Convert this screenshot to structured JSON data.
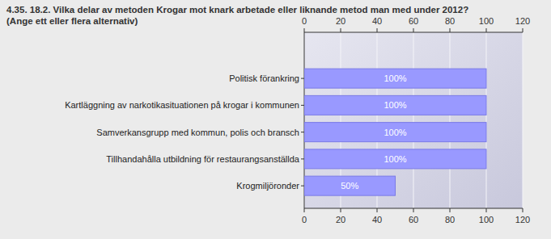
{
  "chart_data": {
    "type": "bar",
    "orientation": "horizontal",
    "title": "4.35. 18.2. Vilka delar av metoden Krogar mot knark arbetade eller liknande metod man med under 2012?\n(Ange ett eller flera alternativ)",
    "categories": [
      "Politisk förankring",
      "Kartläggning av narkotikasituationen på krogar i kommunen",
      "Samverkansgrupp med kommun, polis och bransch",
      "Tillhandahålla utbildning för restaurangsanställda",
      "Krogmiljöronder"
    ],
    "values": [
      100,
      100,
      100,
      100,
      50
    ],
    "value_labels": [
      "100%",
      "100%",
      "100%",
      "100%",
      "50%"
    ],
    "data_labels": true,
    "color": "#9999ff",
    "ylim": [
      0,
      120
    ],
    "yticks": [
      0,
      20,
      40,
      60,
      80,
      100,
      120
    ],
    "grid": true
  }
}
